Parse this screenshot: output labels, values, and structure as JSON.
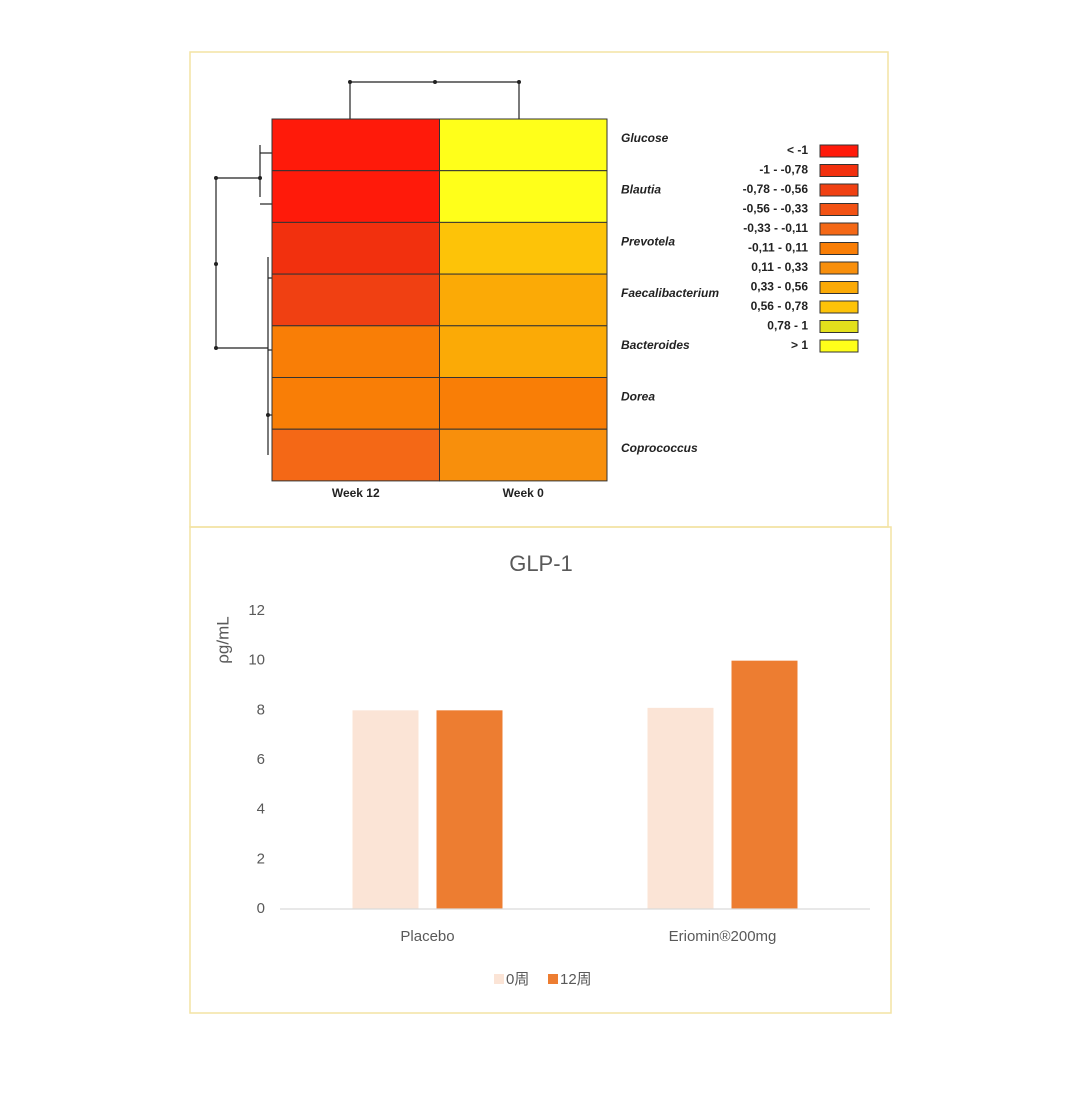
{
  "chart_data": [
    {
      "type": "heatmap",
      "rows": [
        "Glucose",
        "Blautia",
        "Prevotela",
        "Faecalibacterium",
        "Bacteroides",
        "Dorea",
        "Coprococcus"
      ],
      "columns": [
        "Week 12",
        "Week 0"
      ],
      "values": [
        [
          -1.2,
          1.2
        ],
        [
          -1.2,
          1.2
        ],
        [
          -0.85,
          0.65
        ],
        [
          -0.6,
          0.45
        ],
        [
          0,
          0.4
        ],
        [
          0,
          0
        ],
        [
          -0.2,
          0.2
        ]
      ],
      "breaks": [
        -1,
        -0.78,
        -0.56,
        -0.33,
        -0.11,
        0.11,
        0.33,
        0.56,
        0.78,
        1
      ],
      "legend": [
        {
          "label": "< -1",
          "color": "#ff1a0a"
        },
        {
          "label": "-1 - -0,78",
          "color": "#f2300e"
        },
        {
          "label": "-0,78 - -0,56",
          "color": "#f04012"
        },
        {
          "label": "-0,56 - -0,33",
          "color": "#f25214"
        },
        {
          "label": "-0,33 - -0,11",
          "color": "#f46816"
        },
        {
          "label": "-0,11 - 0,11",
          "color": "#f97e06"
        },
        {
          "label": "0,11 - 0,33",
          "color": "#f88f0c"
        },
        {
          "label": "0,33 - 0,56",
          "color": "#fbaa06"
        },
        {
          "label": "0,56 - 0,78",
          "color": "#fdc308"
        },
        {
          "label": "0,78 - 1",
          "color": "#e3e01c"
        },
        {
          "label": "> 1",
          "color": "#ffff1a"
        }
      ]
    },
    {
      "type": "bar",
      "title": "GLP-1",
      "y_label": "ρg/mL",
      "categories": [
        "Placebo",
        "Eriomin®200mg"
      ],
      "series": [
        {
          "name": "0周",
          "color": "#fbe4d6",
          "values": [
            8.0,
            8.1
          ]
        },
        {
          "name": "12周",
          "color": "#ed7d31",
          "values": [
            8.0,
            10.0
          ]
        }
      ],
      "ylim": [
        0,
        12
      ],
      "yticks": [
        0,
        2,
        4,
        6,
        8,
        10,
        12
      ],
      "grid": false
    }
  ]
}
